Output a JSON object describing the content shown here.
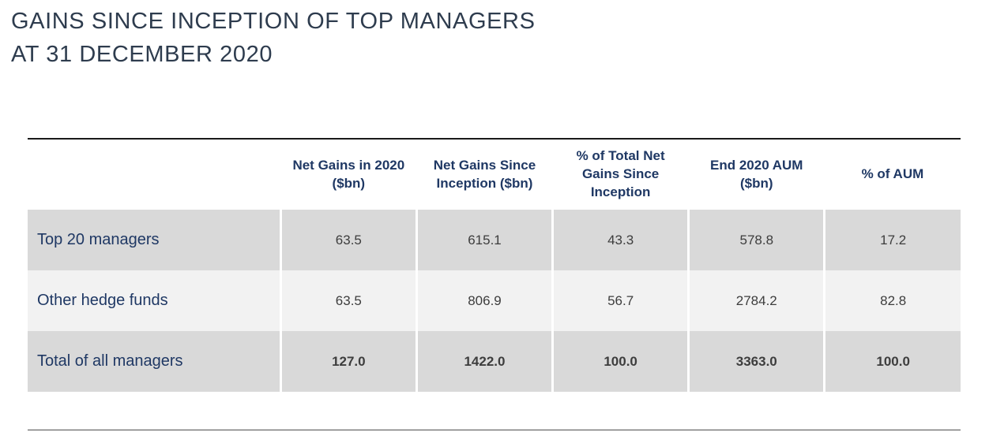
{
  "title": {
    "line1": "GAINS SINCE INCEPTION OF TOP MANAGERS",
    "line2": "AT 31 DECEMBER 2020"
  },
  "chart_data": {
    "type": "table",
    "title": "GAINS SINCE INCEPTION OF TOP MANAGERS AT 31 DECEMBER 2020",
    "columns": [
      "Net Gains in 2020 ($bn)",
      "Net Gains Since Inception ($bn)",
      "% of Total Net Gains Since Inception",
      "End 2020 AUM ($bn)",
      "% of AUM"
    ],
    "rows": [
      {
        "label": "Top 20 managers",
        "values": [
          "63.5",
          "615.1",
          "43.3",
          "578.8",
          "17.2"
        ]
      },
      {
        "label": "Other hedge funds",
        "values": [
          "63.5",
          "806.9",
          "56.7",
          "2784.2",
          "82.8"
        ]
      },
      {
        "label": "Total of all managers",
        "values": [
          "127.0",
          "1422.0",
          "100.0",
          "3363.0",
          "100.0"
        ]
      }
    ]
  },
  "colors": {
    "title_text": "#2e3c4e",
    "header_text": "#1f3864",
    "row_label_text": "#1f3864",
    "value_text": "#3d3d3d",
    "row_gray": "#d9d9d9",
    "row_light": "#f2f2f2",
    "top_rule": "#1a1a1a",
    "bottom_rule": "#4d4d4d"
  }
}
